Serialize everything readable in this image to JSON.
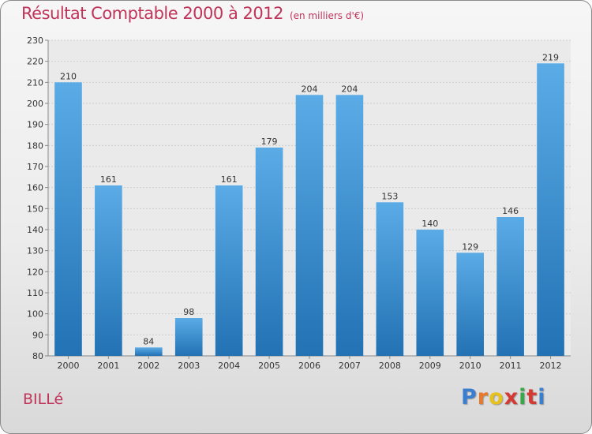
{
  "chart_data": {
    "type": "bar",
    "title": "Résultat Comptable 2000 à 2012",
    "subtitle": "(en milliers d'€)",
    "categories": [
      "2000",
      "2001",
      "2002",
      "2003",
      "2004",
      "2005",
      "2006",
      "2007",
      "2008",
      "2009",
      "2010",
      "2011",
      "2012"
    ],
    "values": [
      210,
      161,
      84,
      98,
      161,
      179,
      204,
      204,
      153,
      140,
      129,
      146,
      219
    ],
    "ylim": [
      80,
      230
    ],
    "yticks": [
      80,
      90,
      100,
      110,
      120,
      130,
      140,
      150,
      160,
      170,
      180,
      190,
      200,
      210,
      220,
      230
    ],
    "xlabel": "",
    "ylabel": "",
    "grid": true,
    "colors": {
      "bar_top": "#5aabe6",
      "bar_bottom": "#2272b4",
      "text_accent": "#c0345a"
    }
  },
  "footer": {
    "town": "BILLé",
    "logo": {
      "text": "Proxiti",
      "letters": [
        "P",
        "r",
        "o",
        "x",
        "i",
        "t",
        "i"
      ],
      "colors": [
        "#3a7fcf",
        "#e8782a",
        "#e8c21c",
        "#d43a34",
        "#3aa84a",
        "#d43a34",
        "#3a7fcf"
      ]
    }
  }
}
